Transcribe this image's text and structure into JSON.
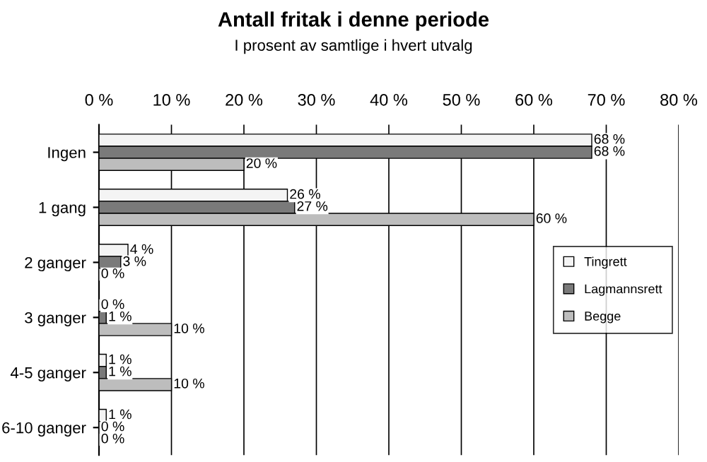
{
  "chart_data": {
    "type": "bar",
    "orientation": "horizontal",
    "title": "Antall fritak i denne periode",
    "subtitle": "I prosent av samtlige i hvert utvalg",
    "categories": [
      "Ingen",
      "1 gang",
      "2 ganger",
      "3 ganger",
      "4-5 ganger",
      "6-10 ganger"
    ],
    "series": [
      {
        "name": "Tingrett",
        "color": "#f4f4f4",
        "values": [
          68,
          26,
          4,
          0,
          1,
          1
        ],
        "value_labels": [
          "68 %",
          "26 %",
          "4 %",
          "0 %",
          "1 %",
          "1 %"
        ]
      },
      {
        "name": "Lagmannsrett",
        "color": "#7a7a7a",
        "values": [
          68,
          27,
          3,
          1,
          1,
          0
        ],
        "value_labels": [
          "68 %",
          "27 %",
          "3 %",
          "1 %",
          "1 %",
          "0 %"
        ]
      },
      {
        "name": "Begge",
        "color": "#bdbdbd",
        "values": [
          20,
          60,
          0,
          10,
          10,
          0
        ],
        "value_labels": [
          "20 %",
          "60 %",
          "0 %",
          "10 %",
          "10 %",
          "0 %"
        ]
      }
    ],
    "xlim": [
      0,
      80
    ],
    "xticks": [
      {
        "value": 0,
        "label": "0 %"
      },
      {
        "value": 10,
        "label": "10 %"
      },
      {
        "value": 20,
        "label": "20 %"
      },
      {
        "value": 30,
        "label": "30 %"
      },
      {
        "value": 40,
        "label": "40 %"
      },
      {
        "value": 50,
        "label": "50 %"
      },
      {
        "value": 60,
        "label": "60 %"
      },
      {
        "value": 70,
        "label": "70 %"
      },
      {
        "value": 80,
        "label": "80 %"
      }
    ],
    "grid": "x",
    "legend": "right"
  }
}
